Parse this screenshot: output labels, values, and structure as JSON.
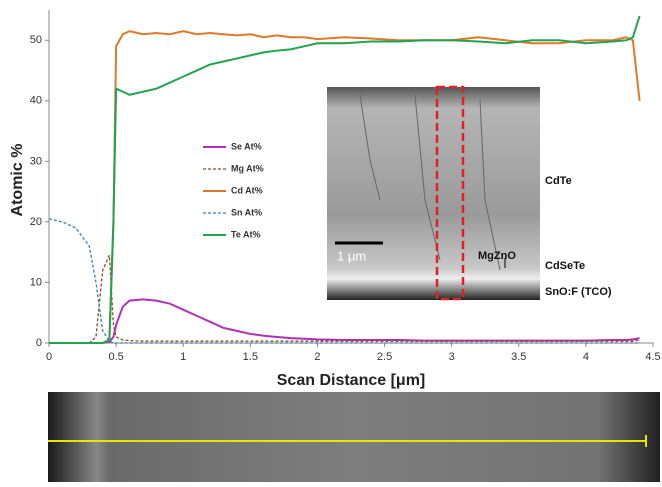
{
  "chart_data": {
    "type": "line",
    "x_label": "Scan Distance [μm]",
    "y_label": "Atomic %",
    "x": [
      0,
      0.1,
      0.2,
      0.3,
      0.35,
      0.4,
      0.45,
      0.48,
      0.5,
      0.55,
      0.6,
      0.7,
      0.8,
      0.9,
      1.0,
      1.1,
      1.2,
      1.3,
      1.4,
      1.5,
      1.6,
      1.7,
      1.8,
      1.9,
      2.0,
      2.2,
      2.4,
      2.6,
      2.8,
      3.0,
      3.2,
      3.4,
      3.6,
      3.8,
      4.0,
      4.2,
      4.3,
      4.35,
      4.4
    ],
    "series": [
      {
        "name": "Se At%",
        "color": "#b130b5",
        "dash": false,
        "values": [
          0,
          0,
          0,
          0,
          0,
          0,
          0.2,
          1,
          3,
          6,
          7,
          7.2,
          7,
          6.5,
          5.5,
          4.5,
          3.5,
          2.5,
          2,
          1.5,
          1.2,
          1,
          0.8,
          0.7,
          0.6,
          0.5,
          0.5,
          0.5,
          0.4,
          0.4,
          0.4,
          0.4,
          0.4,
          0.4,
          0.4,
          0.5,
          0.5,
          0.6,
          0.8
        ]
      },
      {
        "name": "Mg At%",
        "color": "#8c4a2a",
        "dash": true,
        "values": [
          0,
          0,
          0,
          0,
          1,
          12,
          14.5,
          3,
          1,
          0.5,
          0.4,
          0.3,
          0.3,
          0.3,
          0.3,
          0.3,
          0.3,
          0.3,
          0.3,
          0.3,
          0.3,
          0.3,
          0.3,
          0.3,
          0.3,
          0.3,
          0.3,
          0.3,
          0.3,
          0.3,
          0.3,
          0.3,
          0.3,
          0.3,
          0.3,
          0.3,
          0.3,
          0.3,
          0.5
        ]
      },
      {
        "name": "Cd At%",
        "color": "#e0782a",
        "dash": false,
        "values": [
          0,
          0,
          0,
          0,
          0,
          0,
          0.5,
          20,
          49,
          51,
          51.5,
          51,
          51.2,
          51,
          51.5,
          51,
          51.2,
          51,
          50.8,
          51,
          50.5,
          50.8,
          50.5,
          50.5,
          50.2,
          50.5,
          50.3,
          50,
          50,
          50,
          50.5,
          50,
          49.5,
          49.5,
          50,
          50,
          50.5,
          50,
          40
        ]
      },
      {
        "name": "Sn At%",
        "color": "#3d7fa8",
        "dash": true,
        "values": [
          20.5,
          20,
          19,
          16,
          10,
          2,
          0.3,
          0,
          0,
          0,
          0,
          0,
          0,
          0,
          0,
          0,
          0,
          0,
          0,
          0,
          0,
          0,
          0,
          0,
          0,
          0,
          0,
          0,
          0,
          0,
          0,
          0,
          0,
          0,
          0,
          0,
          0,
          0,
          0
        ]
      },
      {
        "name": "Te At%",
        "color": "#22a34e",
        "dash": false,
        "values": [
          0,
          0,
          0,
          0,
          0,
          0,
          0.5,
          20,
          42,
          41.5,
          41,
          41.5,
          42,
          43,
          44,
          45,
          46,
          46.5,
          47,
          47.5,
          48,
          48.3,
          48.5,
          49,
          49.5,
          49.5,
          49.8,
          49.8,
          50,
          50,
          49.8,
          49.5,
          50,
          50,
          49.5,
          49.8,
          50,
          50.5,
          54
        ]
      }
    ],
    "xlim": [
      0,
      4.5
    ],
    "xticks": [
      0,
      0.5,
      1,
      1.5,
      2,
      2.5,
      3,
      3.5,
      4,
      4.5
    ],
    "ylim": [
      0,
      55
    ],
    "yticks": [
      0,
      10,
      20,
      30,
      40,
      50
    ],
    "annotations": [
      "CdTe",
      "CdSeTe",
      "MgZnO",
      "SnO:F (TCO)",
      "1 μm"
    ]
  }
}
